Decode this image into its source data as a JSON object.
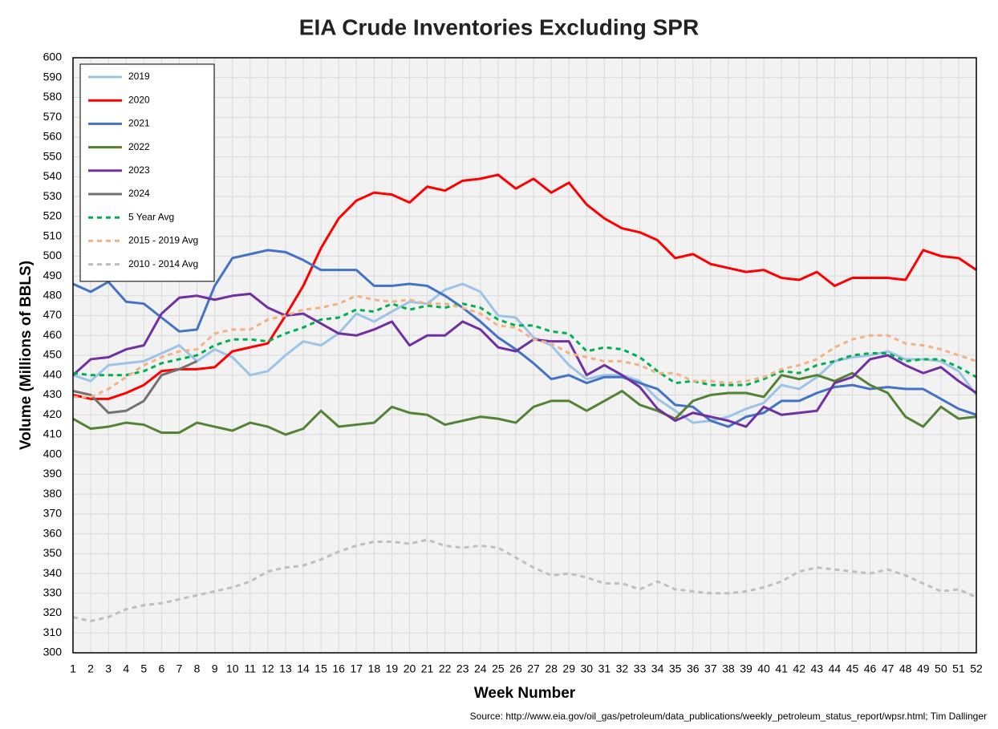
{
  "chart_data": {
    "type": "line",
    "title": "EIA Crude Inventories Excluding SPR",
    "x_label": "Week Number",
    "y_label": "Volume (Millions of BBLS)",
    "source": "Source: http://www.eia.gov/oil_gas/petroleum/data_publications/weekly_petroleum_status_report/wpsr.html; Tim Dallinger",
    "x": [
      1,
      2,
      3,
      4,
      5,
      6,
      7,
      8,
      9,
      10,
      11,
      12,
      13,
      14,
      15,
      16,
      17,
      18,
      19,
      20,
      21,
      22,
      23,
      24,
      25,
      26,
      27,
      28,
      29,
      30,
      31,
      32,
      33,
      34,
      35,
      36,
      37,
      38,
      39,
      40,
      41,
      42,
      43,
      44,
      45,
      46,
      47,
      48,
      49,
      50,
      51,
      52
    ],
    "xlim": [
      1,
      52
    ],
    "xticks": [
      1,
      2,
      3,
      4,
      5,
      6,
      7,
      8,
      9,
      10,
      11,
      12,
      13,
      14,
      15,
      16,
      17,
      18,
      19,
      20,
      21,
      22,
      23,
      24,
      25,
      26,
      27,
      28,
      29,
      30,
      31,
      32,
      33,
      34,
      35,
      36,
      37,
      38,
      39,
      40,
      41,
      42,
      43,
      44,
      45,
      46,
      47,
      48,
      49,
      50,
      51,
      52
    ],
    "ylim": [
      300,
      600
    ],
    "yticks": [
      300,
      310,
      320,
      330,
      340,
      350,
      360,
      370,
      380,
      390,
      400,
      410,
      420,
      430,
      440,
      450,
      460,
      470,
      480,
      490,
      500,
      510,
      520,
      530,
      540,
      550,
      560,
      570,
      580,
      590,
      600
    ],
    "grid": true,
    "legend": "upper left",
    "series": [
      {
        "name": "2019",
        "color": "#9dc3e6",
        "style": "solid",
        "values": [
          440,
          437,
          445,
          446,
          447,
          451,
          455,
          447,
          453,
          449,
          440,
          442,
          450,
          457,
          455,
          461,
          471,
          467,
          472,
          477,
          476,
          483,
          486,
          482,
          470,
          469,
          459,
          455,
          445,
          438,
          440,
          440,
          437,
          428,
          422,
          416,
          417,
          419,
          423,
          426,
          435,
          433,
          439,
          447,
          449,
          450,
          452,
          448,
          448,
          447,
          442,
          430
        ]
      },
      {
        "name": "2020",
        "color": "#ff0000",
        "style": "solid",
        "values": [
          430,
          428,
          428,
          431,
          435,
          442,
          443,
          443,
          444,
          452,
          454,
          456,
          470,
          485,
          504,
          519,
          528,
          532,
          531,
          527,
          535,
          533,
          538,
          539,
          541,
          534,
          539,
          532,
          537,
          526,
          519,
          514,
          512,
          508,
          499,
          501,
          496,
          494,
          492,
          493,
          489,
          488,
          492,
          485,
          489,
          489,
          489,
          488,
          503,
          500,
          499,
          493
        ]
      },
      {
        "name": "2021",
        "color": "#4472c4",
        "style": "solid",
        "values": [
          486,
          482,
          487,
          477,
          476,
          469,
          462,
          463,
          485,
          499,
          501,
          503,
          502,
          498,
          493,
          493,
          493,
          485,
          485,
          486,
          485,
          480,
          474,
          467,
          459,
          453,
          446,
          438,
          440,
          436,
          439,
          439,
          436,
          433,
          425,
          424,
          417,
          414,
          419,
          421,
          427,
          427,
          431,
          434,
          435,
          433,
          434,
          433,
          433,
          428,
          423,
          420
        ]
      },
      {
        "name": "2022",
        "color": "#548235",
        "style": "solid",
        "values": [
          418,
          413,
          414,
          416,
          415,
          411,
          411,
          416,
          414,
          412,
          416,
          414,
          410,
          413,
          422,
          414,
          415,
          416,
          424,
          421,
          420,
          415,
          417,
          419,
          418,
          416,
          424,
          427,
          427,
          422,
          427,
          432,
          425,
          422,
          418,
          427,
          430,
          431,
          431,
          429,
          440,
          438,
          440,
          437,
          441,
          435,
          431,
          419,
          414,
          424,
          418,
          419
        ]
      },
      {
        "name": "2023",
        "color": "#7030a0",
        "style": "solid",
        "values": [
          440,
          448,
          449,
          453,
          455,
          471,
          479,
          480,
          478,
          480,
          481,
          474,
          470,
          471,
          466,
          461,
          460,
          463,
          467,
          455,
          460,
          460,
          467,
          463,
          454,
          452,
          458,
          457,
          457,
          440,
          445,
          440,
          434,
          423,
          417,
          421,
          419,
          417,
          414,
          424,
          420,
          421,
          422,
          436,
          439,
          448,
          450,
          445,
          441,
          444,
          437,
          431
        ]
      },
      {
        "name": "2024",
        "color": "#767171",
        "style": "solid",
        "values": [
          432,
          430,
          421,
          422,
          427,
          440,
          443,
          447,
          null,
          null,
          null,
          null,
          null,
          null,
          null,
          null,
          null,
          null,
          null,
          null,
          null,
          null,
          null,
          null,
          null,
          null,
          null,
          null,
          null,
          null,
          null,
          null,
          null,
          null,
          null,
          null,
          null,
          null,
          null,
          null,
          null,
          null,
          null,
          null,
          null,
          null,
          null,
          null,
          null,
          null,
          null,
          null
        ]
      },
      {
        "name": "5 Year Avg",
        "color": "#00b050",
        "style": "dashed",
        "values": [
          441,
          440,
          440,
          440,
          442,
          446,
          448,
          450,
          455,
          458,
          458,
          457,
          461,
          464,
          468,
          469,
          473,
          472,
          476,
          473,
          475,
          474,
          476,
          474,
          468,
          465,
          465,
          462,
          461,
          452,
          454,
          453,
          449,
          442,
          436,
          437,
          435,
          435,
          435,
          438,
          442,
          441,
          445,
          447,
          450,
          451,
          451,
          447,
          448,
          448,
          444,
          439
        ]
      },
      {
        "name": "2015 - 2019 Avg",
        "color": "#f4b183",
        "style": "dashed",
        "values": [
          429,
          429,
          433,
          439,
          445,
          449,
          452,
          453,
          461,
          463,
          463,
          468,
          470,
          473,
          474,
          476,
          480,
          478,
          477,
          478,
          476,
          476,
          474,
          471,
          465,
          464,
          458,
          456,
          451,
          449,
          447,
          447,
          445,
          441,
          441,
          437,
          437,
          436,
          437,
          439,
          443,
          445,
          448,
          454,
          458,
          460,
          460,
          456,
          455,
          453,
          450,
          447
        ]
      },
      {
        "name": "2010 - 2014 Avg",
        "color": "#bfbfbf",
        "style": "dashed",
        "values": [
          318,
          316,
          318,
          322,
          324,
          325,
          327,
          329,
          331,
          333,
          336,
          341,
          343,
          344,
          347,
          351,
          354,
          356,
          356,
          355,
          357,
          354,
          353,
          354,
          353,
          348,
          343,
          339,
          340,
          338,
          335,
          335,
          332,
          336,
          332,
          331,
          330,
          330,
          331,
          333,
          336,
          341,
          343,
          342,
          341,
          340,
          342,
          339,
          335,
          331,
          332,
          328
        ]
      }
    ]
  }
}
